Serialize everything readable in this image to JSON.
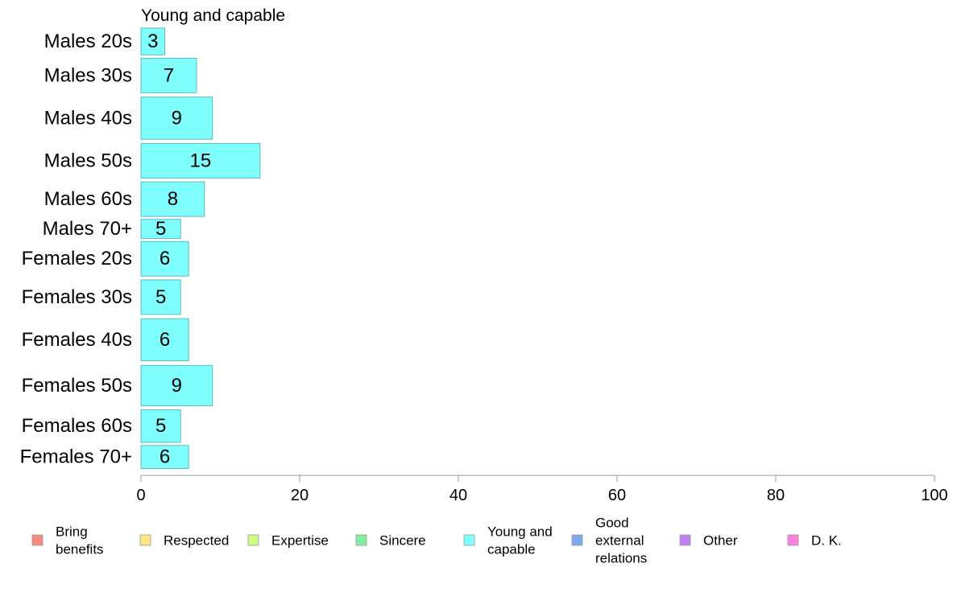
{
  "chart_data": {
    "type": "bar",
    "orientation": "horizontal",
    "title": "Young and capable",
    "categories": [
      "Males 20s",
      "Males 30s",
      "Males 40s",
      "Males 50s",
      "Males 60s",
      "Males 70+",
      "Females 20s",
      "Females 30s",
      "Females 40s",
      "Females 50s",
      "Females 60s",
      "Females 70+"
    ],
    "values": [
      3,
      7,
      9,
      15,
      8,
      5,
      6,
      5,
      6,
      9,
      5,
      6
    ],
    "category_weights": [
      0.7,
      0.9,
      1.1,
      0.9,
      0.9,
      0.5,
      0.9,
      0.9,
      1.1,
      1.05,
      0.85,
      0.6
    ],
    "xlim": [
      0,
      100
    ],
    "xticks": [
      0,
      20,
      40,
      60,
      80,
      100
    ],
    "xlabel": "",
    "ylabel": "",
    "grid": false,
    "bar_color": "#80FFFF",
    "bar_stroke": "#5fb8bb",
    "legend": {
      "position": "bottom",
      "entries": [
        {
          "label": "Bring benefits",
          "lines": [
            "Bring",
            "benefits"
          ],
          "color": "#F8877F"
        },
        {
          "label": "Respected",
          "lines": [
            "Respected"
          ],
          "color": "#FFE680"
        },
        {
          "label": "Expertise",
          "lines": [
            "Expertise"
          ],
          "color": "#CCFF80"
        },
        {
          "label": "Sincere",
          "lines": [
            "Sincere"
          ],
          "color": "#80F0A0"
        },
        {
          "label": "Young and capable",
          "lines": [
            "Young and",
            "capable"
          ],
          "color": "#80FFFF"
        },
        {
          "label": "Good external relations",
          "lines": [
            "Good",
            "external",
            "relations"
          ],
          "color": "#80A8F0"
        },
        {
          "label": "Other",
          "lines": [
            "Other"
          ],
          "color": "#C080F8"
        },
        {
          "label": "D. K.",
          "lines": [
            "D. K."
          ],
          "color": "#FF80E0"
        }
      ]
    }
  }
}
